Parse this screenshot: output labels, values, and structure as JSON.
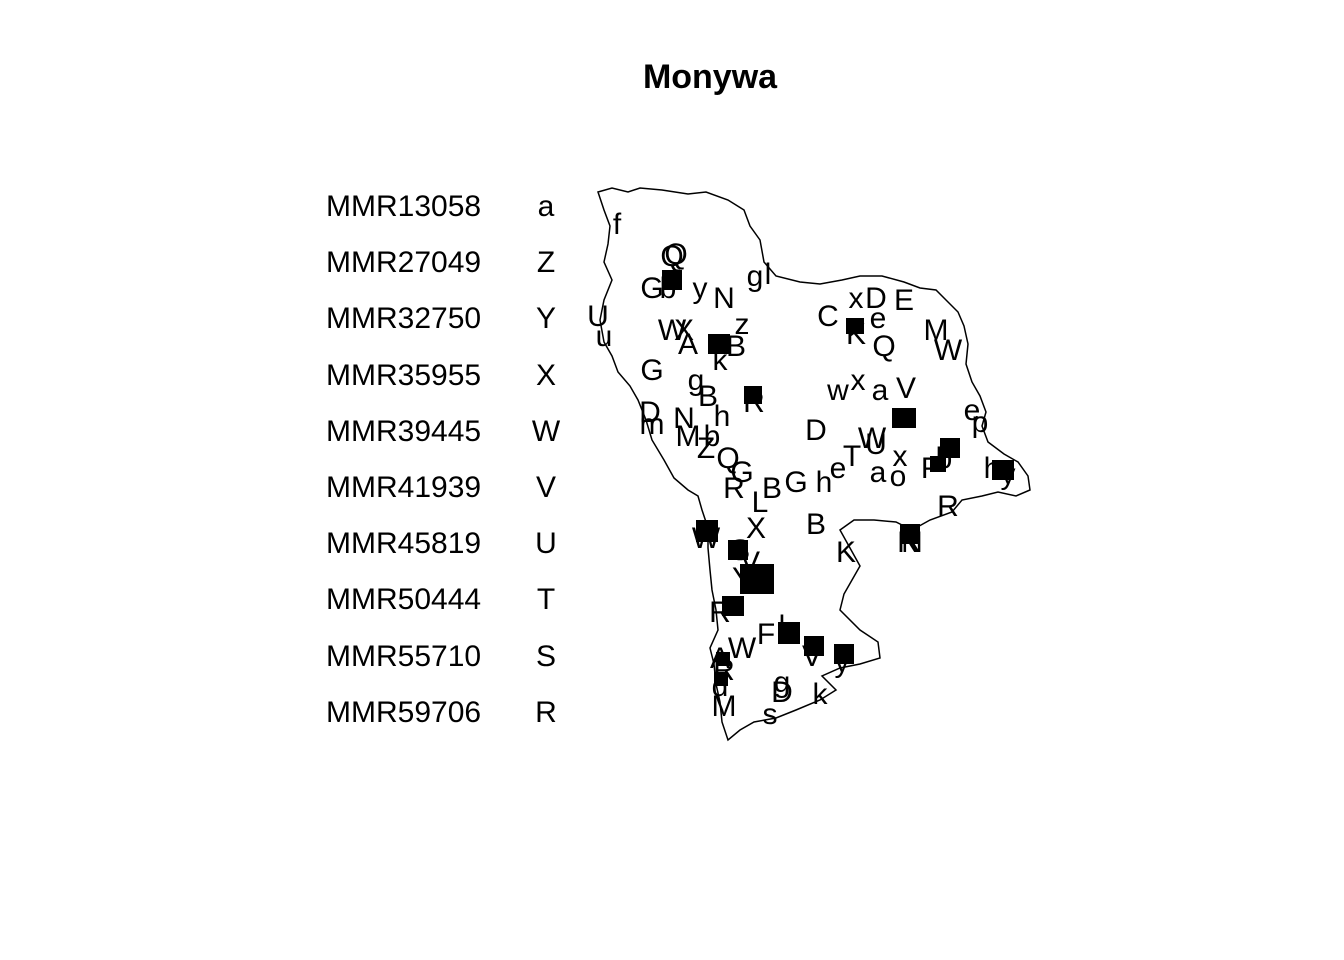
{
  "title": "Monywa",
  "legend": [
    {
      "code": "MMR13058",
      "letter": "a"
    },
    {
      "code": "MMR27049",
      "letter": "Z"
    },
    {
      "code": "MMR32750",
      "letter": "Y"
    },
    {
      "code": "MMR35955",
      "letter": "X"
    },
    {
      "code": "MMR39445",
      "letter": "W"
    },
    {
      "code": "MMR41939",
      "letter": "V"
    },
    {
      "code": "MMR45819",
      "letter": "U"
    },
    {
      "code": "MMR50444",
      "letter": "T"
    },
    {
      "code": "MMR55710",
      "letter": "S"
    },
    {
      "code": "MMR59706",
      "letter": "R"
    }
  ],
  "map_labels": [
    "f",
    "Q",
    "Q",
    "G",
    "b",
    "y",
    "N",
    "g",
    "l",
    "U",
    "u",
    "W",
    "X",
    "A",
    "B",
    "k",
    "z",
    "C",
    "x",
    "D",
    "E",
    "K",
    "e",
    "Q",
    "M",
    "W",
    "G",
    "g",
    "B",
    "R",
    "w",
    "x",
    "a",
    "V",
    "D",
    "m",
    "N",
    "M",
    "b",
    "h",
    "D",
    "W",
    "e",
    "p",
    "Z",
    "Q",
    "G",
    "R",
    "B",
    "G",
    "h",
    "e",
    "T",
    "U",
    "x",
    "a",
    "o",
    "b",
    "h",
    "y",
    "L",
    "X",
    "B",
    "K",
    "R",
    "R",
    "W",
    "V",
    "Y",
    "F",
    "l",
    "W",
    "V",
    "y",
    "A",
    "R",
    "d",
    "M",
    "D",
    "k",
    "s",
    "g",
    "R",
    "N",
    "P",
    "S",
    "F"
  ]
}
